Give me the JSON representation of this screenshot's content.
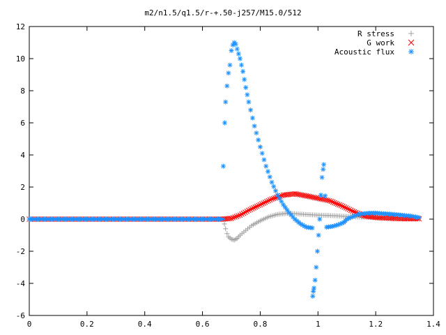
{
  "chart_data": {
    "type": "scatter",
    "title": "m2/n1.5/q1.5/r-+.50-j257/M15.0/512",
    "xlabel": "",
    "ylabel": "",
    "xlim": [
      0,
      1.4
    ],
    "ylim": [
      -6,
      12
    ],
    "x_ticks": [
      "0",
      "0.2",
      "0.4",
      "0.6",
      "0.8",
      "1",
      "1.2",
      "1.4"
    ],
    "y_ticks": [
      "-6",
      "-4",
      "-2",
      "0",
      "2",
      "4",
      "6",
      "8",
      "10",
      "12"
    ],
    "grid": false,
    "legend_position": "top-right",
    "series": [
      {
        "name": "R stress",
        "marker": "+",
        "color": "#a0a0a0",
        "points": [
          [
            0.0,
            0
          ],
          [
            0.2,
            0
          ],
          [
            0.4,
            0
          ],
          [
            0.6,
            0
          ],
          [
            0.672,
            0
          ],
          [
            0.676,
            -0.3
          ],
          [
            0.68,
            -0.6
          ],
          [
            0.685,
            -0.9
          ],
          [
            0.69,
            -1.1
          ],
          [
            0.7,
            -1.25
          ],
          [
            0.71,
            -1.3
          ],
          [
            0.72,
            -1.2
          ],
          [
            0.73,
            -1.0
          ],
          [
            0.75,
            -0.7
          ],
          [
            0.77,
            -0.4
          ],
          [
            0.8,
            -0.1
          ],
          [
            0.83,
            0.15
          ],
          [
            0.86,
            0.3
          ],
          [
            0.9,
            0.37
          ],
          [
            0.95,
            0.3
          ],
          [
            1.0,
            0.25
          ],
          [
            1.05,
            0.22
          ],
          [
            1.1,
            0.17
          ],
          [
            1.15,
            0.12
          ],
          [
            1.2,
            0.1
          ],
          [
            1.25,
            0.08
          ],
          [
            1.3,
            0.06
          ],
          [
            1.35,
            0.05
          ]
        ]
      },
      {
        "name": "G work",
        "marker": "x",
        "color": "#ff0000",
        "points": [
          [
            0.0,
            0
          ],
          [
            0.2,
            0
          ],
          [
            0.4,
            0
          ],
          [
            0.6,
            0
          ],
          [
            0.672,
            0
          ],
          [
            0.7,
            0.05
          ],
          [
            0.73,
            0.25
          ],
          [
            0.76,
            0.55
          ],
          [
            0.8,
            0.9
          ],
          [
            0.84,
            1.25
          ],
          [
            0.88,
            1.5
          ],
          [
            0.92,
            1.58
          ],
          [
            0.96,
            1.45
          ],
          [
            1.0,
            1.3
          ],
          [
            1.04,
            1.15
          ],
          [
            1.08,
            0.85
          ],
          [
            1.12,
            0.5
          ],
          [
            1.16,
            0.2
          ],
          [
            1.2,
            0.1
          ],
          [
            1.25,
            0.05
          ],
          [
            1.3,
            0.02
          ],
          [
            1.35,
            0.02
          ]
        ]
      },
      {
        "name": "Acoustic flux",
        "marker": "*",
        "color": "#1e90ff",
        "points": [
          [
            0.0,
            0
          ],
          [
            0.2,
            0
          ],
          [
            0.4,
            0
          ],
          [
            0.6,
            0
          ],
          [
            0.67,
            0
          ],
          [
            0.672,
            3.3
          ],
          [
            0.677,
            6.0
          ],
          [
            0.68,
            7.3
          ],
          [
            0.685,
            8.3
          ],
          [
            0.69,
            9.1
          ],
          [
            0.695,
            9.6
          ],
          [
            0.7,
            10.5
          ],
          [
            0.705,
            10.85
          ],
          [
            0.71,
            11.0
          ],
          [
            0.715,
            10.9
          ],
          [
            0.72,
            10.6
          ],
          [
            0.73,
            10.0
          ],
          [
            0.74,
            9.2
          ],
          [
            0.75,
            8.2
          ],
          [
            0.76,
            7.3
          ],
          [
            0.78,
            5.8
          ],
          [
            0.8,
            4.5
          ],
          [
            0.82,
            3.3
          ],
          [
            0.84,
            2.3
          ],
          [
            0.86,
            1.5
          ],
          [
            0.88,
            0.9
          ],
          [
            0.9,
            0.4
          ],
          [
            0.92,
            0.0
          ],
          [
            0.94,
            -0.3
          ],
          [
            0.96,
            -0.5
          ],
          [
            0.98,
            -0.55
          ],
          [
            0.982,
            -4.8
          ],
          [
            0.984,
            -4.5
          ],
          [
            0.986,
            -4.3
          ],
          [
            0.99,
            -3.8
          ],
          [
            0.994,
            -3.0
          ],
          [
            0.998,
            -2.0
          ],
          [
            1.002,
            -1.0
          ],
          [
            1.006,
            0.0
          ],
          [
            1.01,
            1.5
          ],
          [
            1.014,
            2.6
          ],
          [
            1.018,
            3.1
          ],
          [
            1.02,
            3.4
          ],
          [
            1.03,
            -0.5
          ],
          [
            1.05,
            -0.45
          ],
          [
            1.07,
            -0.35
          ],
          [
            1.09,
            -0.2
          ],
          [
            1.1,
            0.0
          ],
          [
            1.12,
            0.15
          ],
          [
            1.14,
            0.3
          ],
          [
            1.16,
            0.35
          ],
          [
            1.18,
            0.38
          ],
          [
            1.2,
            0.38
          ],
          [
            1.22,
            0.35
          ],
          [
            1.24,
            0.33
          ],
          [
            1.26,
            0.3
          ],
          [
            1.28,
            0.27
          ],
          [
            1.3,
            0.23
          ],
          [
            1.32,
            0.2
          ],
          [
            1.35,
            0.1
          ]
        ]
      }
    ]
  }
}
